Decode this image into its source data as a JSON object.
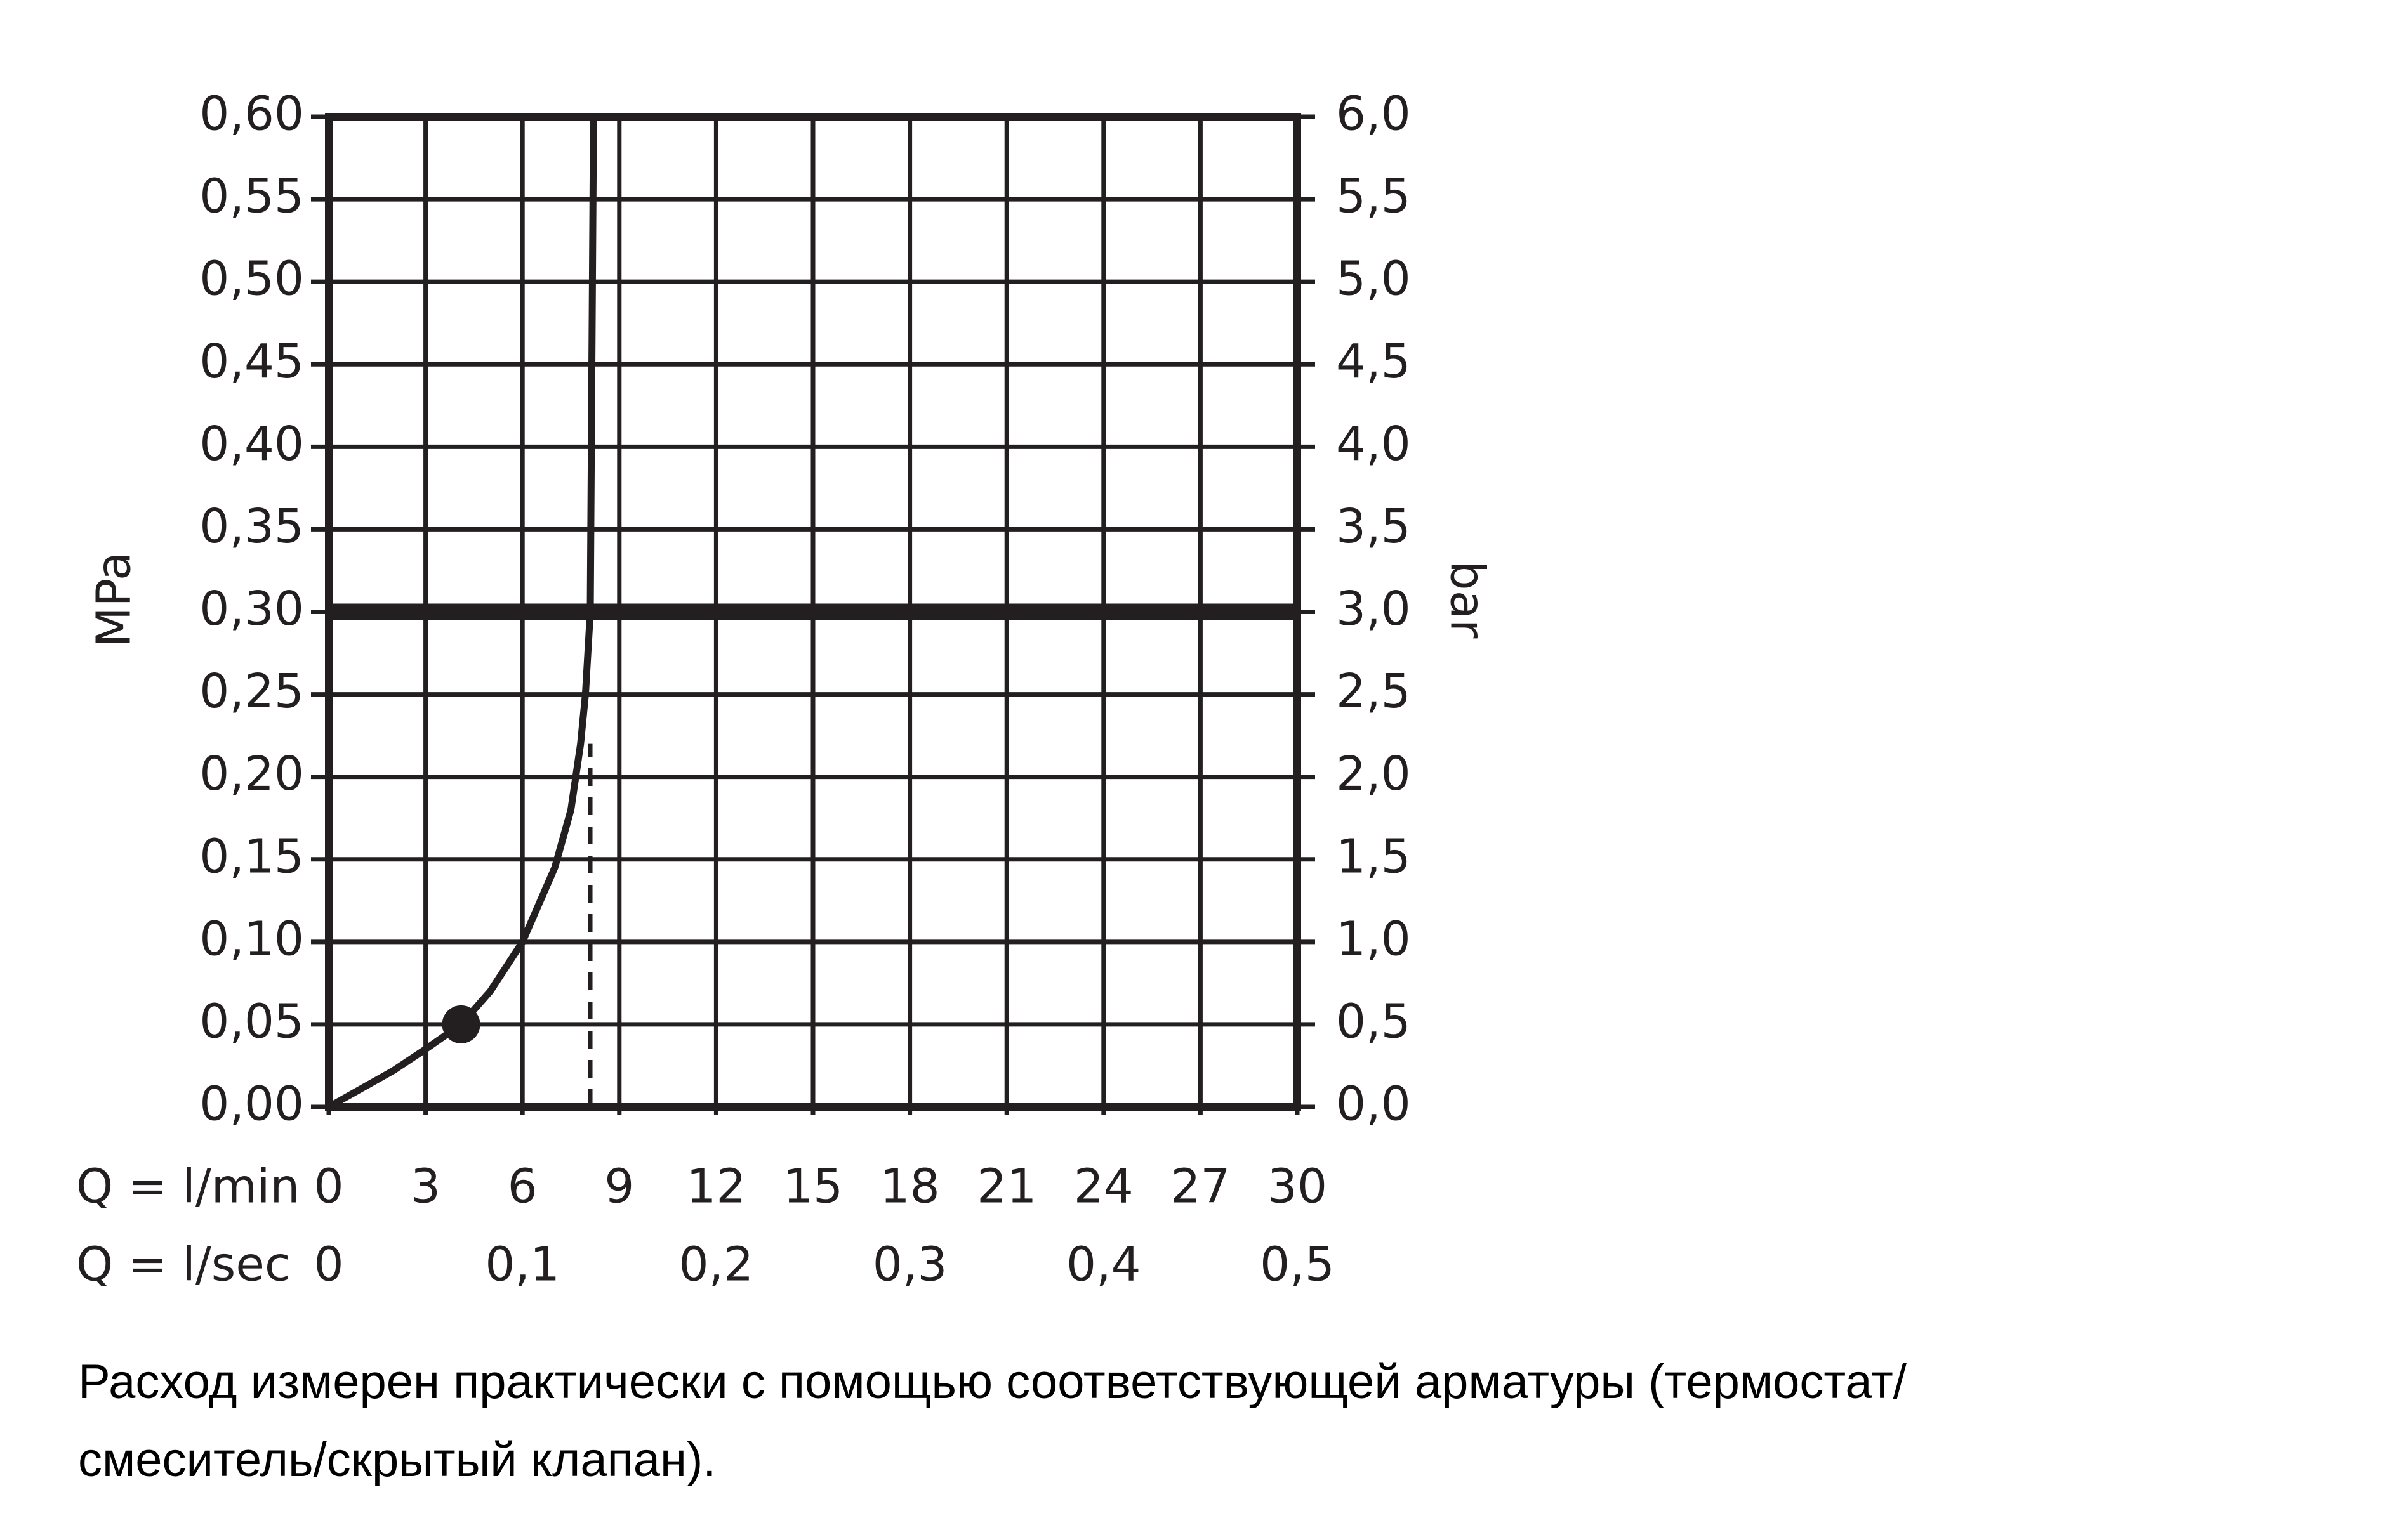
{
  "chart_data": {
    "type": "line",
    "y_label": "MPa",
    "y2_label": "bar",
    "x_label": "Q = l/min",
    "x2_label": "Q = l/sec",
    "x": [
      0,
      2,
      3,
      4.1,
      5,
      6,
      7,
      7.5,
      7.8,
      7.95,
      8.1,
      8.2
    ],
    "series": [
      {
        "color": "#231f20",
        "values": [
          0,
          0.022,
          0.035,
          0.05,
          0.07,
          0.1,
          0.145,
          0.18,
          0.22,
          0.25,
          0.3,
          0.6
        ]
      }
    ],
    "marker": {
      "x": 4.1,
      "y": 0.05
    },
    "hline": 0.3,
    "vline": {
      "x": 8.1,
      "y": 0.22
    },
    "xlim": [
      0,
      30
    ],
    "xticks": [
      0,
      3,
      6,
      9,
      12,
      15,
      18,
      21,
      24,
      27,
      30
    ],
    "x2lim": [
      0,
      0.5
    ],
    "x2ticks": [
      0,
      {
        "value": 0.1,
        "label": "0,1"
      },
      {
        "value": 0.2,
        "label": "0,2"
      },
      {
        "value": 0.3,
        "label": "0,3"
      },
      {
        "value": 0.4,
        "label": "0,4"
      },
      {
        "value": 0.5,
        "label": "0,5"
      }
    ],
    "ylim": [
      0,
      0.6
    ],
    "yticks": [
      {
        "value": 0,
        "label": "0,00"
      },
      {
        "value": 0.05,
        "label": "0,05"
      },
      {
        "value": 0.1,
        "label": "0,10"
      },
      {
        "value": 0.15,
        "label": "0,15"
      },
      {
        "value": 0.2,
        "label": "0,20"
      },
      {
        "value": 0.25,
        "label": "0,25"
      },
      {
        "value": 0.3,
        "label": "0,30"
      },
      {
        "value": 0.35,
        "label": "0,35"
      },
      {
        "value": 0.4,
        "label": "0,40"
      },
      {
        "value": 0.45,
        "label": "0,45"
      },
      {
        "value": 0.5,
        "label": "0,50"
      },
      {
        "value": 0.55,
        "label": "0,55"
      },
      {
        "value": 0.6,
        "label": "0,60"
      }
    ],
    "y2lim": [
      0,
      6
    ],
    "y2ticks": [
      {
        "value": 0,
        "label": "0,0"
      },
      {
        "value": 0.5,
        "label": "0,5"
      },
      {
        "value": 1,
        "label": "1,0"
      },
      {
        "value": 1.5,
        "label": "1,5"
      },
      {
        "value": 2,
        "label": "2,0"
      },
      {
        "value": 2.5,
        "label": "2,5"
      },
      {
        "value": 3,
        "label": "3,0"
      },
      {
        "value": 3.5,
        "label": "3,5"
      },
      {
        "value": 4,
        "label": "4,0"
      },
      {
        "value": 4.5,
        "label": "4,5"
      },
      {
        "value": 5,
        "label": "5,0"
      },
      {
        "value": 5.5,
        "label": "5,5"
      },
      {
        "value": 6,
        "label": "6,0"
      }
    ],
    "grid": true,
    "note": [
      "Расход измерен практически с помощью соответствующей арматуры (термостат/",
      "смеситель/скрытый клапан)."
    ]
  }
}
